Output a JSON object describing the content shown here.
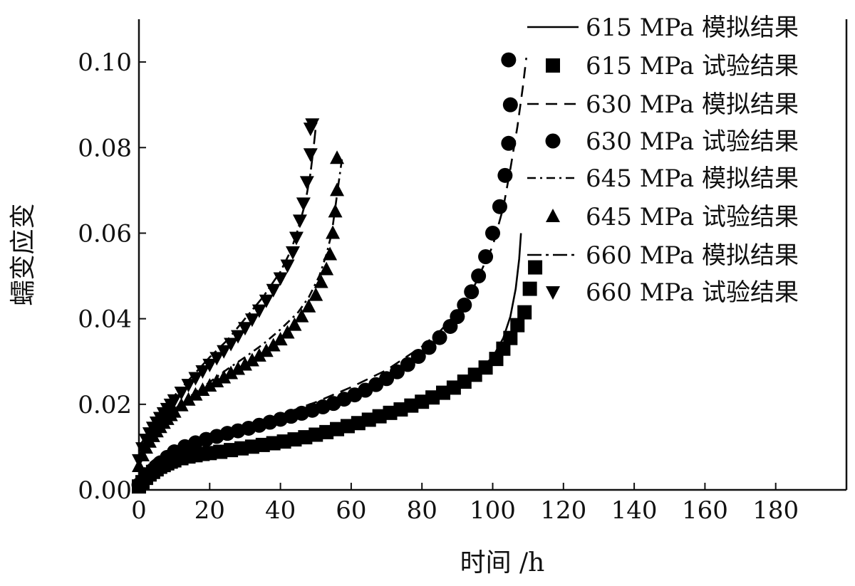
{
  "chart_data": {
    "type": "scatter",
    "xlabel": "时间 /h",
    "ylabel": "蠕变应变",
    "xlim": [
      0,
      200
    ],
    "ylim": [
      0,
      0.11
    ],
    "x_ticks": [
      "0",
      "20",
      "40",
      "60",
      "80",
      "100",
      "120",
      "140",
      "160",
      "180"
    ],
    "x_tick_values": [
      0,
      20,
      40,
      60,
      80,
      100,
      120,
      140,
      160,
      180
    ],
    "y_ticks": [
      "0.00",
      "0.02",
      "0.04",
      "0.06",
      "0.08",
      "0.10"
    ],
    "y_tick_values": [
      0,
      0.02,
      0.04,
      0.06,
      0.08,
      0.1
    ],
    "grid": false,
    "legend_position": "top-right",
    "series": [
      {
        "name": "615 MPa 模拟结果",
        "kind": "line",
        "dash": "solid",
        "points": [
          [
            0,
            0.002
          ],
          [
            2,
            0.004
          ],
          [
            5,
            0.0055
          ],
          [
            10,
            0.0072
          ],
          [
            15,
            0.0085
          ],
          [
            20,
            0.0095
          ],
          [
            30,
            0.011
          ],
          [
            40,
            0.012
          ],
          [
            50,
            0.013
          ],
          [
            60,
            0.0148
          ],
          [
            70,
            0.0172
          ],
          [
            80,
            0.0205
          ],
          [
            85,
            0.0222
          ],
          [
            90,
            0.0245
          ],
          [
            95,
            0.0272
          ],
          [
            100,
            0.031
          ],
          [
            103,
            0.0355
          ],
          [
            105,
            0.0405
          ],
          [
            106.5,
            0.047
          ],
          [
            107.5,
            0.054
          ],
          [
            108,
            0.06
          ]
        ]
      },
      {
        "name": "615 MPa 试验结果",
        "kind": "marker",
        "marker": "square",
        "points": [
          [
            0,
            0.0008
          ],
          [
            1,
            0.0018
          ],
          [
            2,
            0.0028
          ],
          [
            3,
            0.0036
          ],
          [
            4,
            0.0042
          ],
          [
            5,
            0.0048
          ],
          [
            6,
            0.0054
          ],
          [
            7,
            0.0058
          ],
          [
            8,
            0.0062
          ],
          [
            9,
            0.0066
          ],
          [
            10,
            0.0069
          ],
          [
            12,
            0.0074
          ],
          [
            14,
            0.0078
          ],
          [
            16,
            0.0081
          ],
          [
            18,
            0.0084
          ],
          [
            20,
            0.0086
          ],
          [
            23,
            0.0089
          ],
          [
            26,
            0.0093
          ],
          [
            29,
            0.0097
          ],
          [
            32,
            0.0101
          ],
          [
            35,
            0.0105
          ],
          [
            38,
            0.0109
          ],
          [
            41,
            0.0113
          ],
          [
            44,
            0.0118
          ],
          [
            47,
            0.0123
          ],
          [
            50,
            0.0129
          ],
          [
            53,
            0.0135
          ],
          [
            56,
            0.0142
          ],
          [
            59,
            0.0149
          ],
          [
            62,
            0.0156
          ],
          [
            65,
            0.0164
          ],
          [
            68,
            0.0172
          ],
          [
            71,
            0.018
          ],
          [
            74,
            0.0188
          ],
          [
            77,
            0.0197
          ],
          [
            80,
            0.0206
          ],
          [
            83,
            0.0216
          ],
          [
            86,
            0.0227
          ],
          [
            89,
            0.0239
          ],
          [
            92,
            0.0253
          ],
          [
            95,
            0.0269
          ],
          [
            98,
            0.0286
          ],
          [
            101,
            0.0306
          ],
          [
            103,
            0.033
          ],
          [
            105,
            0.0355
          ],
          [
            107,
            0.0385
          ],
          [
            109,
            0.0415
          ],
          [
            110.5,
            0.047
          ],
          [
            112,
            0.052
          ]
        ]
      },
      {
        "name": "630 MPa 模拟结果",
        "kind": "line",
        "dash": "dashed",
        "points": [
          [
            0,
            0.003
          ],
          [
            2,
            0.0055
          ],
          [
            5,
            0.0075
          ],
          [
            10,
            0.0098
          ],
          [
            15,
            0.0115
          ],
          [
            20,
            0.0128
          ],
          [
            30,
            0.015
          ],
          [
            40,
            0.0175
          ],
          [
            50,
            0.0205
          ],
          [
            60,
            0.024
          ],
          [
            70,
            0.028
          ],
          [
            80,
            0.0335
          ],
          [
            85,
            0.037
          ],
          [
            90,
            0.0415
          ],
          [
            95,
            0.048
          ],
          [
            100,
            0.057
          ],
          [
            103,
            0.066
          ],
          [
            105,
            0.075
          ],
          [
            107,
            0.085
          ],
          [
            108.5,
            0.094
          ],
          [
            109.5,
            0.101
          ]
        ]
      },
      {
        "name": "630 MPa 试验结果",
        "kind": "marker",
        "marker": "circle",
        "points": [
          [
            0,
            0.0012
          ],
          [
            2,
            0.003
          ],
          [
            4,
            0.0047
          ],
          [
            6,
            0.0063
          ],
          [
            8,
            0.0076
          ],
          [
            10,
            0.0089
          ],
          [
            13,
            0.0101
          ],
          [
            16,
            0.011
          ],
          [
            19,
            0.0118
          ],
          [
            22,
            0.0125
          ],
          [
            25,
            0.0132
          ],
          [
            28,
            0.0138
          ],
          [
            31,
            0.0144
          ],
          [
            34,
            0.0151
          ],
          [
            37,
            0.0158
          ],
          [
            40,
            0.0165
          ],
          [
            43,
            0.0172
          ],
          [
            46,
            0.0179
          ],
          [
            49,
            0.0186
          ],
          [
            52,
            0.0194
          ],
          [
            55,
            0.0202
          ],
          [
            58,
            0.0212
          ],
          [
            61,
            0.0222
          ],
          [
            64,
            0.0233
          ],
          [
            67,
            0.0246
          ],
          [
            70,
            0.026
          ],
          [
            73,
            0.0276
          ],
          [
            76,
            0.0293
          ],
          [
            79,
            0.0312
          ],
          [
            82,
            0.0333
          ],
          [
            85,
            0.0356
          ],
          [
            88,
            0.0382
          ],
          [
            90,
            0.0405
          ],
          [
            92,
            0.0432
          ],
          [
            94,
            0.0463
          ],
          [
            96,
            0.05
          ],
          [
            98,
            0.0545
          ],
          [
            100,
            0.06
          ],
          [
            102,
            0.0662
          ],
          [
            103.5,
            0.0735
          ],
          [
            104.5,
            0.081
          ],
          [
            105,
            0.09
          ],
          [
            104.5,
            0.1005
          ]
        ]
      },
      {
        "name": "645 MPa 模拟结果",
        "kind": "line",
        "dash": "dashdot",
        "points": [
          [
            0,
            0.009
          ],
          [
            3,
            0.0125
          ],
          [
            6,
            0.0155
          ],
          [
            10,
            0.0188
          ],
          [
            15,
            0.0222
          ],
          [
            20,
            0.0252
          ],
          [
            25,
            0.0282
          ],
          [
            30,
            0.031
          ],
          [
            35,
            0.034
          ],
          [
            40,
            0.0375
          ],
          [
            45,
            0.0415
          ],
          [
            48,
            0.045
          ],
          [
            51,
            0.05
          ],
          [
            53,
            0.055
          ],
          [
            54.5,
            0.06
          ],
          [
            55.5,
            0.066
          ],
          [
            56.5,
            0.072
          ],
          [
            57.5,
            0.078
          ]
        ]
      },
      {
        "name": "645 MPa 试验结果",
        "kind": "marker",
        "marker": "triangle-up",
        "points": [
          [
            0,
            0.0055
          ],
          [
            1,
            0.008
          ],
          [
            2,
            0.0098
          ],
          [
            3,
            0.0112
          ],
          [
            4,
            0.0125
          ],
          [
            5,
            0.0136
          ],
          [
            6,
            0.0146
          ],
          [
            7,
            0.0156
          ],
          [
            8,
            0.0165
          ],
          [
            9,
            0.0174
          ],
          [
            10,
            0.0182
          ],
          [
            12,
            0.0197
          ],
          [
            14,
            0.021
          ],
          [
            16,
            0.0222
          ],
          [
            18,
            0.0233
          ],
          [
            20,
            0.0243
          ],
          [
            22,
            0.0253
          ],
          [
            24,
            0.0262
          ],
          [
            26,
            0.0272
          ],
          [
            28,
            0.0282
          ],
          [
            30,
            0.0292
          ],
          [
            32,
            0.0302
          ],
          [
            34,
            0.0313
          ],
          [
            36,
            0.0324
          ],
          [
            38,
            0.0337
          ],
          [
            40,
            0.0351
          ],
          [
            42,
            0.0367
          ],
          [
            44,
            0.0385
          ],
          [
            46,
            0.0405
          ],
          [
            48,
            0.0428
          ],
          [
            50,
            0.0455
          ],
          [
            51.5,
            0.0485
          ],
          [
            53,
            0.0515
          ],
          [
            54,
            0.055
          ],
          [
            54.8,
            0.06
          ],
          [
            55.5,
            0.065
          ],
          [
            56,
            0.07
          ],
          [
            56,
            0.0775
          ]
        ]
      },
      {
        "name": "660 MPa 模拟结果",
        "kind": "line",
        "dash": "longdashdot",
        "points": [
          [
            0,
            0.01
          ],
          [
            3,
            0.014
          ],
          [
            6,
            0.018
          ],
          [
            10,
            0.022
          ],
          [
            15,
            0.0265
          ],
          [
            20,
            0.031
          ],
          [
            25,
            0.035
          ],
          [
            30,
            0.04
          ],
          [
            35,
            0.045
          ],
          [
            40,
            0.051
          ],
          [
            43,
            0.056
          ],
          [
            45,
            0.061
          ],
          [
            47,
            0.067
          ],
          [
            48.5,
            0.074
          ],
          [
            49.5,
            0.081
          ],
          [
            50,
            0.085
          ]
        ]
      },
      {
        "name": "660 MPa 试验结果",
        "kind": "marker",
        "marker": "triangle-down",
        "points": [
          [
            0,
            0.007
          ],
          [
            1,
            0.0098
          ],
          [
            2,
            0.0118
          ],
          [
            3,
            0.0133
          ],
          [
            4,
            0.0146
          ],
          [
            5,
            0.0158
          ],
          [
            6,
            0.0169
          ],
          [
            7,
            0.018
          ],
          [
            8,
            0.019
          ],
          [
            9,
            0.02
          ],
          [
            10,
            0.021
          ],
          [
            12,
            0.0228
          ],
          [
            14,
            0.0246
          ],
          [
            16,
            0.0262
          ],
          [
            18,
            0.0278
          ],
          [
            20,
            0.0293
          ],
          [
            22,
            0.0309
          ],
          [
            24,
            0.0325
          ],
          [
            26,
            0.0342
          ],
          [
            28,
            0.036
          ],
          [
            30,
            0.0379
          ],
          [
            32,
            0.0399
          ],
          [
            34,
            0.042
          ],
          [
            36,
            0.0443
          ],
          [
            38,
            0.0468
          ],
          [
            40,
            0.0495
          ],
          [
            42,
            0.0525
          ],
          [
            43.5,
            0.0556
          ],
          [
            44.5,
            0.059
          ],
          [
            45.5,
            0.063
          ],
          [
            46.5,
            0.067
          ],
          [
            47.5,
            0.072
          ],
          [
            48.5,
            0.0785
          ],
          [
            49,
            0.0855
          ],
          [
            48.5,
            0.0845
          ]
        ]
      }
    ]
  }
}
